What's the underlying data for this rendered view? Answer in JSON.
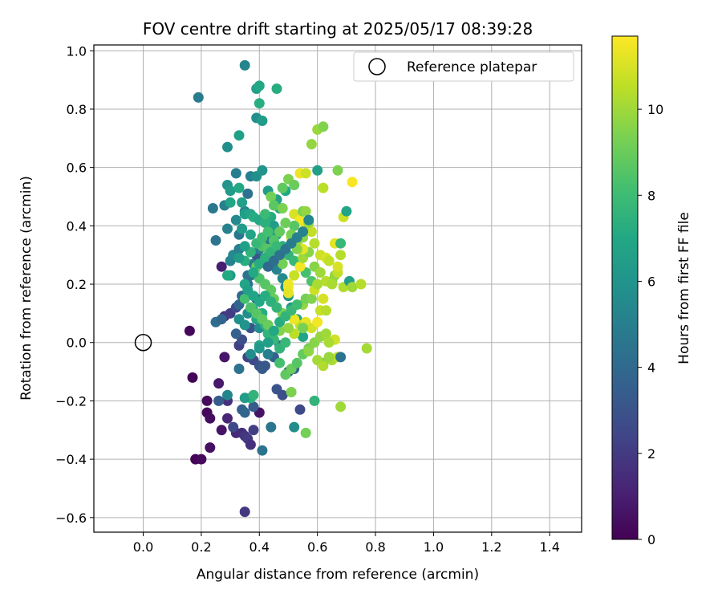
{
  "chart_data": {
    "type": "scatter",
    "title": "FOV centre drift starting at 2025/05/17 08:39:28",
    "xlabel": "Angular distance from reference (arcmin)",
    "ylabel": "Rotation from reference (arcmin)",
    "xlim": [
      -0.17,
      1.51
    ],
    "ylim": [
      -0.65,
      1.02
    ],
    "xticks": [
      0.0,
      0.2,
      0.4,
      0.6,
      0.8,
      1.0,
      1.2,
      1.4
    ],
    "xtick_labels": [
      "0.0",
      "0.2",
      "0.4",
      "0.6",
      "0.8",
      "1.0",
      "1.2",
      "1.4"
    ],
    "yticks": [
      -0.6,
      -0.4,
      -0.2,
      0.0,
      0.2,
      0.4,
      0.6,
      0.8,
      1.0
    ],
    "ytick_labels": [
      "−0.6",
      "−0.4",
      "−0.2",
      "0.0",
      "0.2",
      "0.4",
      "0.6",
      "0.8",
      "1.0"
    ],
    "grid": true,
    "legend": {
      "position": "top-right",
      "entries": [
        {
          "label": "Reference platepar",
          "marker": "open-circle"
        }
      ]
    },
    "reference_point": {
      "x": 0.0,
      "y": 0.0
    },
    "colorbar": {
      "label": "Hours from first FF file",
      "colormap": "viridis",
      "range": [
        0,
        11.7
      ],
      "ticks": [
        0,
        2,
        4,
        6,
        8,
        10
      ],
      "tick_labels": [
        "0",
        "2",
        "4",
        "6",
        "8",
        "10"
      ]
    },
    "points": [
      [
        0.16,
        0.04,
        0.2
      ],
      [
        0.17,
        -0.12,
        0.1
      ],
      [
        0.18,
        -0.4,
        0.1
      ],
      [
        0.2,
        -0.4,
        0.3
      ],
      [
        0.22,
        -0.2,
        0.3
      ],
      [
        0.22,
        -0.24,
        0.2
      ],
      [
        0.23,
        -0.26,
        0.4
      ],
      [
        0.23,
        -0.36,
        0.5
      ],
      [
        0.26,
        -0.14,
        0.8
      ],
      [
        0.27,
        -0.3,
        0.6
      ],
      [
        0.28,
        -0.05,
        0.7
      ],
      [
        0.27,
        0.26,
        1.0
      ],
      [
        0.29,
        -0.2,
        1.6
      ],
      [
        0.29,
        -0.26,
        1.2
      ],
      [
        0.32,
        -0.31,
        1.4
      ],
      [
        0.34,
        -0.31,
        1.5
      ],
      [
        0.35,
        -0.32,
        1.8
      ],
      [
        0.36,
        -0.33,
        2.0
      ],
      [
        0.37,
        -0.35,
        1.6
      ],
      [
        0.35,
        -0.58,
        1.9
      ],
      [
        0.38,
        -0.3,
        2.2
      ],
      [
        0.4,
        -0.24,
        0.6
      ],
      [
        0.28,
        0.09,
        1.8
      ],
      [
        0.3,
        0.1,
        2.1
      ],
      [
        0.32,
        0.12,
        2.5
      ],
      [
        0.33,
        -0.01,
        2.2
      ],
      [
        0.34,
        0.01,
        2.8
      ],
      [
        0.36,
        -0.05,
        2.4
      ],
      [
        0.37,
        0.05,
        3.0
      ],
      [
        0.38,
        -0.06,
        2.6
      ],
      [
        0.39,
        0.15,
        3.2
      ],
      [
        0.4,
        -0.08,
        3.0
      ],
      [
        0.41,
        -0.09,
        3.4
      ],
      [
        0.42,
        -0.08,
        3.2
      ],
      [
        0.25,
        0.07,
        4.2
      ],
      [
        0.27,
        0.08,
        3.8
      ],
      [
        0.26,
        -0.2,
        3.4
      ],
      [
        0.34,
        -0.23,
        3.6
      ],
      [
        0.35,
        -0.24,
        3.9
      ],
      [
        0.38,
        -0.22,
        3.4
      ],
      [
        0.41,
        -0.37,
        4.5
      ],
      [
        0.45,
        -0.05,
        3.6
      ],
      [
        0.46,
        -0.16,
        3.0
      ],
      [
        0.48,
        -0.18,
        2.8
      ],
      [
        0.5,
        -0.1,
        3.5
      ],
      [
        0.52,
        -0.09,
        3.6
      ],
      [
        0.54,
        -0.23,
        2.6
      ],
      [
        0.44,
        -0.29,
        4.6
      ],
      [
        0.32,
        0.03,
        3.6
      ],
      [
        0.33,
        0.13,
        3.8
      ],
      [
        0.34,
        0.16,
        4.0
      ],
      [
        0.36,
        0.2,
        4.2
      ],
      [
        0.37,
        0.23,
        4.5
      ],
      [
        0.38,
        0.27,
        4.8
      ],
      [
        0.39,
        0.3,
        3.2
      ],
      [
        0.4,
        0.32,
        5.0
      ],
      [
        0.42,
        0.33,
        4.4
      ],
      [
        0.44,
        0.35,
        4.6
      ],
      [
        0.45,
        0.38,
        4.9
      ],
      [
        0.46,
        0.25,
        5.2
      ],
      [
        0.48,
        0.22,
        5.5
      ],
      [
        0.49,
        0.19,
        5.8
      ],
      [
        0.5,
        0.16,
        6.0
      ],
      [
        0.51,
        0.12,
        6.3
      ],
      [
        0.53,
        0.08,
        6.6
      ],
      [
        0.55,
        0.02,
        6.8
      ],
      [
        0.33,
        -0.09,
        4.4
      ],
      [
        0.43,
        -0.04,
        5.0
      ],
      [
        0.47,
        -0.01,
        4.4
      ],
      [
        0.4,
        0.05,
        5.6
      ],
      [
        0.38,
        0.11,
        5.9
      ],
      [
        0.36,
        0.23,
        4.4
      ],
      [
        0.3,
        0.28,
        5.2
      ],
      [
        0.31,
        0.3,
        5.5
      ],
      [
        0.33,
        0.32,
        5.0
      ],
      [
        0.33,
        0.37,
        4.6
      ],
      [
        0.32,
        0.42,
        5.5
      ],
      [
        0.35,
        0.45,
        5.2
      ],
      [
        0.36,
        0.51,
        4.4
      ],
      [
        0.32,
        0.58,
        4.9
      ],
      [
        0.37,
        0.57,
        5.0
      ],
      [
        0.39,
        0.57,
        5.8
      ],
      [
        0.41,
        0.59,
        6.0
      ],
      [
        0.43,
        0.52,
        6.4
      ],
      [
        0.46,
        0.49,
        6.6
      ],
      [
        0.47,
        0.46,
        6.8
      ],
      [
        0.49,
        0.52,
        7.0
      ],
      [
        0.44,
        0.43,
        7.2
      ],
      [
        0.45,
        0.4,
        6.4
      ],
      [
        0.46,
        0.37,
        6.8
      ],
      [
        0.48,
        0.33,
        7.4
      ],
      [
        0.5,
        0.3,
        7.6
      ],
      [
        0.52,
        0.28,
        7.8
      ],
      [
        0.54,
        0.26,
        8.0
      ],
      [
        0.56,
        0.24,
        8.2
      ],
      [
        0.58,
        0.21,
        8.4
      ],
      [
        0.24,
        0.46,
        4.7
      ],
      [
        0.25,
        0.35,
        4.5
      ],
      [
        0.28,
        0.47,
        5.0
      ],
      [
        0.29,
        0.54,
        6.0
      ],
      [
        0.3,
        0.52,
        6.4
      ],
      [
        0.3,
        0.48,
        6.8
      ],
      [
        0.33,
        0.53,
        7.0
      ],
      [
        0.34,
        0.48,
        6.6
      ],
      [
        0.29,
        0.39,
        5.2
      ],
      [
        0.34,
        0.39,
        6.4
      ],
      [
        0.35,
        0.44,
        6.6
      ],
      [
        0.37,
        0.44,
        6.8
      ],
      [
        0.38,
        0.43,
        7.2
      ],
      [
        0.4,
        0.42,
        7.0
      ],
      [
        0.42,
        0.41,
        7.4
      ],
      [
        0.29,
        0.67,
        5.7
      ],
      [
        0.33,
        0.71,
        6.6
      ],
      [
        0.19,
        0.84,
        4.8
      ],
      [
        0.35,
        0.95,
        5.3
      ],
      [
        0.39,
        0.77,
        5.8
      ],
      [
        0.41,
        0.76,
        6.4
      ],
      [
        0.39,
        0.87,
        6.6
      ],
      [
        0.4,
        0.88,
        7.0
      ],
      [
        0.46,
        0.87,
        7.2
      ],
      [
        0.4,
        0.82,
        7.3
      ],
      [
        0.3,
        0.23,
        6.3
      ],
      [
        0.29,
        0.23,
        7.1
      ],
      [
        0.35,
        0.2,
        6.8
      ],
      [
        0.36,
        0.1,
        5.7
      ],
      [
        0.38,
        0.11,
        6.6
      ],
      [
        0.39,
        0.08,
        7.0
      ],
      [
        0.41,
        0.1,
        7.2
      ],
      [
        0.42,
        0.06,
        7.4
      ],
      [
        0.43,
        0.03,
        7.6
      ],
      [
        0.45,
        0.01,
        7.8
      ],
      [
        0.4,
        -0.01,
        6.8
      ],
      [
        0.37,
        -0.19,
        7.4
      ],
      [
        0.31,
        -0.29,
        2.5
      ],
      [
        0.29,
        -0.18,
        5.3
      ],
      [
        0.35,
        -0.19,
        6.4
      ],
      [
        0.38,
        -0.18,
        7.6
      ],
      [
        0.52,
        -0.29,
        5.7
      ],
      [
        0.56,
        -0.31,
        9.2
      ],
      [
        0.59,
        -0.2,
        7.6
      ],
      [
        0.51,
        -0.17,
        9.4
      ],
      [
        0.47,
        -0.07,
        8.2
      ],
      [
        0.49,
        -0.11,
        8.8
      ],
      [
        0.51,
        -0.09,
        9.0
      ],
      [
        0.53,
        -0.07,
        8.6
      ],
      [
        0.55,
        -0.04,
        8.9
      ],
      [
        0.57,
        -0.02,
        9.3
      ],
      [
        0.59,
        0.0,
        9.6
      ],
      [
        0.61,
        0.02,
        9.8
      ],
      [
        0.63,
        0.03,
        10.0
      ],
      [
        0.65,
        -0.06,
        10.2
      ],
      [
        0.62,
        -0.07,
        9.4
      ],
      [
        0.67,
        -0.05,
        10.5
      ],
      [
        0.68,
        -0.05,
        4.4
      ],
      [
        0.68,
        -0.22,
        10.0
      ],
      [
        0.77,
        -0.02,
        10.1
      ],
      [
        0.54,
        0.06,
        10.6
      ],
      [
        0.56,
        0.07,
        11.3
      ],
      [
        0.58,
        0.05,
        10.9
      ],
      [
        0.6,
        0.07,
        11.5
      ],
      [
        0.61,
        0.11,
        10.7
      ],
      [
        0.52,
        0.08,
        11.4
      ],
      [
        0.52,
        0.03,
        10.5
      ],
      [
        0.5,
        0.05,
        9.8
      ],
      [
        0.47,
        0.04,
        9.5
      ],
      [
        0.55,
        0.13,
        9.8
      ],
      [
        0.56,
        0.15,
        9.2
      ],
      [
        0.58,
        0.15,
        9.5
      ],
      [
        0.59,
        0.18,
        10.8
      ],
      [
        0.6,
        0.2,
        10.2
      ],
      [
        0.62,
        0.15,
        11.0
      ],
      [
        0.63,
        0.11,
        10.4
      ],
      [
        0.65,
        0.21,
        9.6
      ],
      [
        0.66,
        0.23,
        9.8
      ],
      [
        0.67,
        0.24,
        10.6
      ],
      [
        0.69,
        0.19,
        10.3
      ],
      [
        0.71,
        0.21,
        6.6
      ],
      [
        0.72,
        0.19,
        10.0
      ],
      [
        0.75,
        0.2,
        10.4
      ],
      [
        0.5,
        0.19,
        11.6
      ],
      [
        0.5,
        0.2,
        11.4
      ],
      [
        0.5,
        0.17,
        11.2
      ],
      [
        0.52,
        0.23,
        10.7
      ],
      [
        0.54,
        0.26,
        11.5
      ],
      [
        0.55,
        0.29,
        10.0
      ],
      [
        0.57,
        0.31,
        9.6
      ],
      [
        0.59,
        0.34,
        10.4
      ],
      [
        0.61,
        0.3,
        10.8
      ],
      [
        0.63,
        0.29,
        11.0
      ],
      [
        0.64,
        0.28,
        10.6
      ],
      [
        0.66,
        0.34,
        11.2
      ],
      [
        0.67,
        0.26,
        11.0
      ],
      [
        0.68,
        0.3,
        10.4
      ],
      [
        0.68,
        0.34,
        7.8
      ],
      [
        0.69,
        0.43,
        10.8
      ],
      [
        0.7,
        0.45,
        6.8
      ],
      [
        0.52,
        0.44,
        11.0
      ],
      [
        0.54,
        0.42,
        11.5
      ],
      [
        0.56,
        0.4,
        11.3
      ],
      [
        0.58,
        0.38,
        10.6
      ],
      [
        0.51,
        0.36,
        10.6
      ],
      [
        0.53,
        0.34,
        10.0
      ],
      [
        0.55,
        0.32,
        11.2
      ],
      [
        0.52,
        0.4,
        8.6
      ],
      [
        0.55,
        0.45,
        9.3
      ],
      [
        0.56,
        0.45,
        9.8
      ],
      [
        0.54,
        0.58,
        11.4
      ],
      [
        0.56,
        0.58,
        10.8
      ],
      [
        0.6,
        0.59,
        6.6
      ],
      [
        0.62,
        0.53,
        10.5
      ],
      [
        0.67,
        0.59,
        9.4
      ],
      [
        0.72,
        0.55,
        11.6
      ],
      [
        0.6,
        0.73,
        9.9
      ],
      [
        0.62,
        0.74,
        9.5
      ],
      [
        0.58,
        0.68,
        9.8
      ],
      [
        0.5,
        0.56,
        9.4
      ],
      [
        0.52,
        0.54,
        9.0
      ],
      [
        0.48,
        0.53,
        8.8
      ],
      [
        0.44,
        0.5,
        9.2
      ],
      [
        0.45,
        0.47,
        8.7
      ],
      [
        0.48,
        0.46,
        9.4
      ],
      [
        0.42,
        0.44,
        7.9
      ],
      [
        0.41,
        0.33,
        8.4
      ],
      [
        0.43,
        0.32,
        8.6
      ],
      [
        0.45,
        0.31,
        8.8
      ],
      [
        0.47,
        0.29,
        9.0
      ],
      [
        0.48,
        0.27,
        9.2
      ],
      [
        0.39,
        0.26,
        9.0
      ],
      [
        0.4,
        0.22,
        8.4
      ],
      [
        0.42,
        0.2,
        8.6
      ],
      [
        0.44,
        0.18,
        8.8
      ],
      [
        0.45,
        0.15,
        9.0
      ],
      [
        0.46,
        0.12,
        9.2
      ],
      [
        0.48,
        0.1,
        9.4
      ],
      [
        0.35,
        0.15,
        8.2
      ],
      [
        0.37,
        0.12,
        8.4
      ],
      [
        0.39,
        0.1,
        8.6
      ],
      [
        0.41,
        0.08,
        8.8
      ],
      [
        0.43,
        0.06,
        9.0
      ],
      [
        0.55,
        0.05,
        9.3
      ],
      [
        0.57,
        -0.03,
        9.7
      ],
      [
        0.6,
        -0.06,
        10.1
      ],
      [
        0.62,
        -0.08,
        10.3
      ],
      [
        0.64,
        -0.05,
        9.9
      ],
      [
        0.66,
        0.01,
        10.9
      ],
      [
        0.64,
        0.0,
        10.2
      ],
      [
        0.47,
        -0.02,
        7.6
      ],
      [
        0.49,
        0.0,
        7.8
      ],
      [
        0.37,
        -0.04,
        5.6
      ],
      [
        0.4,
        -0.02,
        6.2
      ],
      [
        0.43,
        0.0,
        6.6
      ],
      [
        0.45,
        0.04,
        7.0
      ],
      [
        0.47,
        0.07,
        7.2
      ],
      [
        0.49,
        0.09,
        7.6
      ],
      [
        0.51,
        0.11,
        7.8
      ],
      [
        0.53,
        0.13,
        8.0
      ],
      [
        0.35,
        0.28,
        7.3
      ],
      [
        0.37,
        0.31,
        7.6
      ],
      [
        0.39,
        0.34,
        7.8
      ],
      [
        0.41,
        0.36,
        8.0
      ],
      [
        0.43,
        0.38,
        8.2
      ],
      [
        0.45,
        0.35,
        8.5
      ],
      [
        0.47,
        0.38,
        8.9
      ],
      [
        0.49,
        0.41,
        9.1
      ],
      [
        0.51,
        0.37,
        9.3
      ],
      [
        0.53,
        0.32,
        9.5
      ],
      [
        0.55,
        0.36,
        9.7
      ],
      [
        0.57,
        0.41,
        9.9
      ],
      [
        0.59,
        0.26,
        9.6
      ],
      [
        0.61,
        0.24,
        10.0
      ],
      [
        0.63,
        0.21,
        10.4
      ],
      [
        0.65,
        0.2,
        10.2
      ],
      [
        0.38,
        0.24,
        7.0
      ],
      [
        0.4,
        0.27,
        7.2
      ],
      [
        0.42,
        0.29,
        7.4
      ],
      [
        0.44,
        0.31,
        7.6
      ],
      [
        0.46,
        0.33,
        7.8
      ],
      [
        0.33,
        0.29,
        6.4
      ],
      [
        0.35,
        0.33,
        6.6
      ],
      [
        0.37,
        0.37,
        6.8
      ],
      [
        0.36,
        0.18,
        6.6
      ],
      [
        0.38,
        0.16,
        6.8
      ],
      [
        0.4,
        0.14,
        7.0
      ],
      [
        0.42,
        0.16,
        7.2
      ],
      [
        0.44,
        0.14,
        7.4
      ],
      [
        0.46,
        0.12,
        7.6
      ],
      [
        0.33,
        0.08,
        5.8
      ],
      [
        0.35,
        0.06,
        6.0
      ],
      [
        0.43,
        0.26,
        4.0
      ],
      [
        0.45,
        0.28,
        4.2
      ],
      [
        0.47,
        0.3,
        4.4
      ],
      [
        0.49,
        0.32,
        4.6
      ],
      [
        0.51,
        0.34,
        4.8
      ],
      [
        0.53,
        0.36,
        5.0
      ],
      [
        0.55,
        0.38,
        5.2
      ],
      [
        0.57,
        0.42,
        5.4
      ]
    ]
  }
}
